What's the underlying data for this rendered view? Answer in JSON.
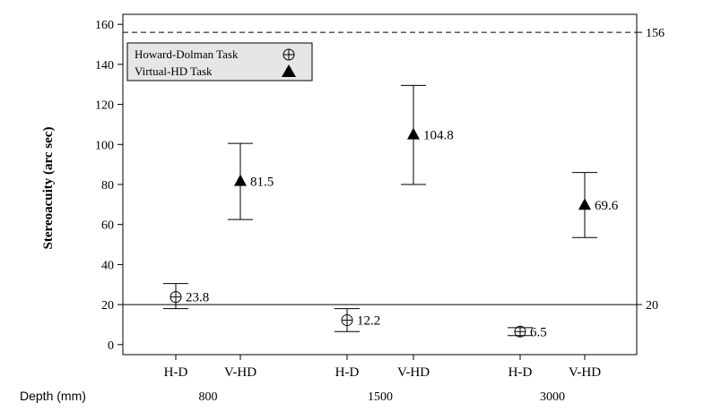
{
  "chart_data": {
    "type": "scatter",
    "ylabel": "Stereoacuity (arc sec)",
    "ylim": [
      -5,
      165
    ],
    "yticks": [
      0,
      20,
      40,
      60,
      80,
      100,
      120,
      140,
      160
    ],
    "reference_lines": [
      {
        "value": 156,
        "label": "156",
        "style": "dashed"
      },
      {
        "value": 20,
        "label": "20",
        "style": "solid"
      }
    ],
    "depth_axis_label": "Depth (mm)",
    "groups": [
      {
        "label": "800"
      },
      {
        "label": "1500"
      },
      {
        "label": "3000"
      }
    ],
    "legend": {
      "placement": "top-left",
      "entries": [
        {
          "label": "Howard-Dolman Task",
          "marker": "circle-plus"
        },
        {
          "label": "Virtual-HD Task",
          "marker": "triangle"
        }
      ]
    },
    "points": [
      {
        "category": "H-D",
        "group": "800",
        "marker": "circle-plus",
        "value": 23.8,
        "label": "23.8",
        "low": 18,
        "high": 30.5
      },
      {
        "category": "V-HD",
        "group": "800",
        "marker": "triangle",
        "value": 81.5,
        "label": "81.5",
        "low": 62.5,
        "high": 100.5
      },
      {
        "category": "H-D",
        "group": "1500",
        "marker": "circle-plus",
        "value": 12.2,
        "label": "12.2",
        "low": 6.5,
        "high": 18
      },
      {
        "category": "V-HD",
        "group": "1500",
        "marker": "triangle",
        "value": 104.8,
        "label": "104.8",
        "low": 80,
        "high": 129.5
      },
      {
        "category": "H-D",
        "group": "3000",
        "marker": "circle-plus",
        "value": 6.5,
        "label": "6.5",
        "low": 4.5,
        "high": 8.5
      },
      {
        "category": "V-HD",
        "group": "3000",
        "marker": "triangle",
        "value": 69.6,
        "label": "69.6",
        "low": 53.5,
        "high": 86
      }
    ]
  }
}
